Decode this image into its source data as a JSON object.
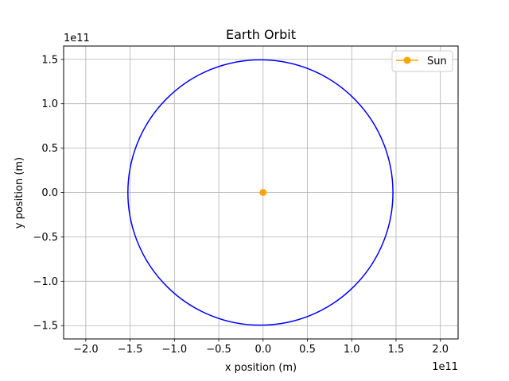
{
  "chart_data": {
    "type": "line",
    "title": "Earth Orbit",
    "xlabel": "x position (m)",
    "ylabel": "y position (m)",
    "x_offset_label": "1e11",
    "y_offset_label": "1e11",
    "xlim": [
      -2.25,
      2.2
    ],
    "ylim": [
      -1.65,
      1.65
    ],
    "x_ticks": [
      -2.0,
      -1.5,
      -1.0,
      -0.5,
      0.0,
      0.5,
      1.0,
      1.5,
      2.0
    ],
    "x_tick_labels": [
      "−2.0",
      "−1.5",
      "−1.0",
      "−0.5",
      "0.0",
      "0.5",
      "1.0",
      "1.5",
      "2.0"
    ],
    "y_ticks": [
      -1.5,
      -1.0,
      -0.5,
      0.0,
      0.5,
      1.0,
      1.5
    ],
    "y_tick_labels": [
      "−1.5",
      "−1.0",
      "−0.5",
      "0.0",
      "0.5",
      "1.0",
      "1.5"
    ],
    "grid": true,
    "legend_position": "top-right",
    "series": [
      {
        "type": "line",
        "color": "#0000ff",
        "shape": "circle",
        "center": [
          -0.03,
          0.0
        ],
        "radius": 1.495
      },
      {
        "name": "Sun",
        "type": "point",
        "color": "#ffa500",
        "x": 0.0,
        "y": 0.0
      }
    ],
    "legend": [
      {
        "label": "Sun",
        "color": "#ffa500",
        "marker": "circle-line"
      }
    ]
  }
}
